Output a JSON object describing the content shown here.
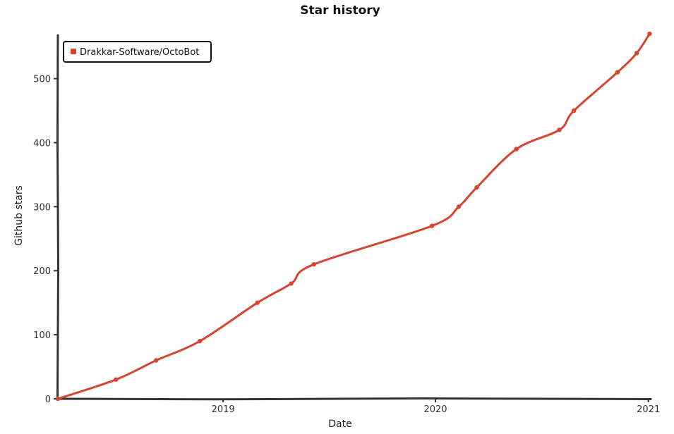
{
  "chart_data": {
    "type": "line",
    "title": "Star history",
    "xlabel": "Date",
    "ylabel": "Github stars",
    "xlim": [
      "2018-03-23",
      "2021-01-05"
    ],
    "ylim": [
      0,
      570
    ],
    "x_ticks": [
      {
        "label": "2019",
        "date": "2019-01-01"
      },
      {
        "label": "2020",
        "date": "2020-01-01"
      },
      {
        "label": "2021",
        "date": "2021-01-01"
      }
    ],
    "y_ticks": [
      0,
      100,
      200,
      300,
      400,
      500
    ],
    "grid": false,
    "legend": {
      "position": "top-left"
    },
    "series": [
      {
        "name": "Drakkar-Software/OctoBot",
        "color": "#d6452f",
        "points": [
          {
            "date": "2018-03-23",
            "value": 0
          },
          {
            "date": "2018-07-01",
            "value": 30
          },
          {
            "date": "2018-09-08",
            "value": 60
          },
          {
            "date": "2018-11-22",
            "value": 90
          },
          {
            "date": "2019-03-01",
            "value": 150
          },
          {
            "date": "2019-04-28",
            "value": 180
          },
          {
            "date": "2019-06-06",
            "value": 210
          },
          {
            "date": "2019-12-26",
            "value": 270
          },
          {
            "date": "2020-02-10",
            "value": 300
          },
          {
            "date": "2020-03-12",
            "value": 330
          },
          {
            "date": "2020-05-19",
            "value": 390
          },
          {
            "date": "2020-08-01",
            "value": 420
          },
          {
            "date": "2020-08-26",
            "value": 450
          },
          {
            "date": "2020-11-09",
            "value": 510
          },
          {
            "date": "2020-12-12",
            "value": 540
          },
          {
            "date": "2021-01-03",
            "value": 570
          }
        ]
      }
    ]
  }
}
